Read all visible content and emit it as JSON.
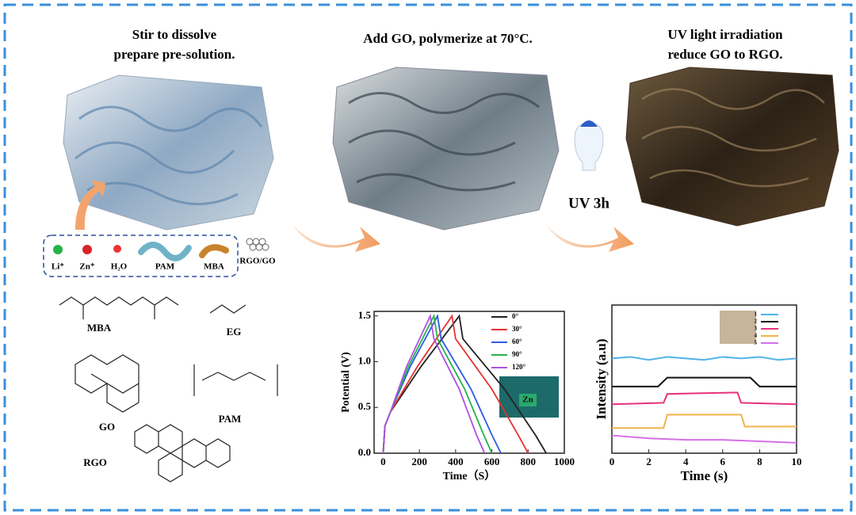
{
  "steps": [
    {
      "lines": [
        "Stir to dissolve",
        "prepare pre-solution."
      ]
    },
    {
      "lines": [
        "Add GO, polymerize at 70°C."
      ]
    },
    {
      "lines": [
        "UV light irradiation",
        "reduce GO to RGO."
      ]
    }
  ],
  "uv_label": "UV 3h",
  "legend": [
    "Li⁺",
    "Zn⁺",
    "H₂O",
    "PAM",
    "MBA",
    "RGO/GO"
  ],
  "molecules": [
    "MBA",
    "EG",
    "GO",
    "PAM",
    "RGO"
  ],
  "chart_data": [
    {
      "type": "line",
      "x_label": "Time（S）",
      "y_label": "Potential (V)",
      "inset_label": "Zn",
      "xlim": [
        -50,
        1000
      ],
      "ylim": [
        0,
        1.55
      ],
      "xticks": [
        0,
        200,
        400,
        600,
        800,
        1000
      ],
      "yticks": [
        {
          "value": 0,
          "label": "0.0"
        },
        0.5,
        {
          "value": 1,
          "label": "1.0"
        },
        1.5
      ],
      "series": [
        {
          "name": "0°",
          "color": "#222222",
          "x": [
            0,
            10,
            40,
            210,
            420,
            440,
            670,
            840,
            900
          ],
          "values": [
            0,
            0.3,
            0.45,
            0.95,
            1.5,
            1.25,
            0.7,
            0.2,
            0
          ]
        },
        {
          "name": "30°",
          "color": "#e8312f",
          "x": [
            0,
            10,
            40,
            190,
            380,
            400,
            600,
            745,
            800
          ],
          "values": [
            0,
            0.3,
            0.45,
            0.95,
            1.5,
            1.25,
            0.7,
            0.2,
            0
          ]
        },
        {
          "name": "60°",
          "color": "#2d5be3",
          "x": [
            0,
            10,
            40,
            150,
            300,
            320,
            485,
            600,
            650
          ],
          "values": [
            0,
            0.3,
            0.45,
            0.95,
            1.5,
            1.25,
            0.7,
            0.2,
            0
          ]
        },
        {
          "name": "90°",
          "color": "#27b34a",
          "x": [
            0,
            10,
            40,
            140,
            280,
            300,
            450,
            555,
            600
          ],
          "values": [
            0,
            0.3,
            0.45,
            0.95,
            1.5,
            1.25,
            0.7,
            0.2,
            0
          ]
        },
        {
          "name": "120°",
          "color": "#b04fe0",
          "x": [
            0,
            10,
            40,
            130,
            260,
            280,
            420,
            515,
            560
          ],
          "values": [
            0,
            0.3,
            0.45,
            0.95,
            1.5,
            1.25,
            0.7,
            0.2,
            0
          ]
        }
      ]
    },
    {
      "type": "line",
      "x_label": "Time (s)",
      "y_label": "Intensity (a.u)",
      "xlim": [
        0,
        10
      ],
      "ylim": [
        0,
        10
      ],
      "xticks": [
        0,
        2,
        4,
        6,
        8,
        10
      ],
      "series": [
        {
          "name": "1",
          "color": "#4fb3e8",
          "x": [
            0,
            1,
            2,
            3,
            4,
            5,
            6,
            7,
            8,
            9,
            10
          ],
          "values": [
            6.4,
            6.5,
            6.3,
            6.5,
            6.4,
            6.3,
            6.5,
            6.4,
            6.5,
            6.3,
            6.4
          ]
        },
        {
          "name": "2",
          "color": "#111111",
          "x": [
            0,
            2.5,
            3,
            7.5,
            8,
            10
          ],
          "values": [
            4.5,
            4.5,
            5.1,
            5.1,
            4.5,
            4.5
          ]
        },
        {
          "name": "3",
          "color": "#e8317a",
          "x": [
            0,
            2.8,
            3,
            6.8,
            7,
            10
          ],
          "values": [
            3.3,
            3.4,
            4.0,
            4.1,
            3.4,
            3.3
          ]
        },
        {
          "name": "4",
          "color": "#f0b44a",
          "x": [
            0,
            2.8,
            3,
            7,
            7.2,
            10
          ],
          "values": [
            1.7,
            1.7,
            2.6,
            2.6,
            1.8,
            1.8
          ]
        },
        {
          "name": "5",
          "color": "#d86ee8",
          "x": [
            0,
            2,
            4,
            6,
            8,
            10
          ],
          "values": [
            1.2,
            1.0,
            0.9,
            0.9,
            0.8,
            0.7
          ]
        }
      ]
    }
  ]
}
